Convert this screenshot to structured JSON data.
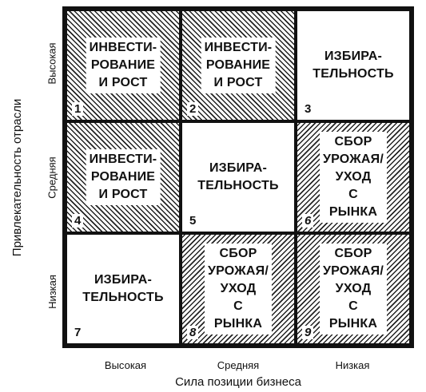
{
  "y_axis_title": "Привлекательность отрасли",
  "x_axis_title": "Сила позиции бизнеса",
  "row_labels": [
    "Высокая",
    "Средняя",
    "Низкая"
  ],
  "column_labels": [
    "Высокая",
    "Средняя",
    "Низкая"
  ],
  "cells": [
    {
      "number": "1",
      "text": "ИНВЕСТИ-\nРОВАНИЕ\nИ РОСТ",
      "fill": "hatch-back"
    },
    {
      "number": "2",
      "text": "ИНВЕСТИ-\nРОВАНИЕ\nИ РОСТ",
      "fill": "hatch-back"
    },
    {
      "number": "3",
      "text": "ИЗБИРА-\nТЕЛЬНОСТЬ",
      "fill": "plain"
    },
    {
      "number": "4",
      "text": "ИНВЕСТИ-\nРОВАНИЕ\nИ РОСТ",
      "fill": "hatch-back"
    },
    {
      "number": "5",
      "text": "ИЗБИРА-\nТЕЛЬНОСТЬ",
      "fill": "plain"
    },
    {
      "number": "6",
      "text": "СБОР\nУРОЖАЯ/\nУХОД\nС РЫНКА",
      "fill": "hatch-fwd"
    },
    {
      "number": "7",
      "text": "ИЗБИРА-\nТЕЛЬНОСТЬ",
      "fill": "plain"
    },
    {
      "number": "8",
      "text": "СБОР\nУРОЖАЯ/\nУХОД\nС РЫНКА",
      "fill": "hatch-fwd"
    },
    {
      "number": "9",
      "text": "СБОР\nУРОЖАЯ/\nУХОД\nС РЫНКА",
      "fill": "hatch-fwd"
    }
  ]
}
